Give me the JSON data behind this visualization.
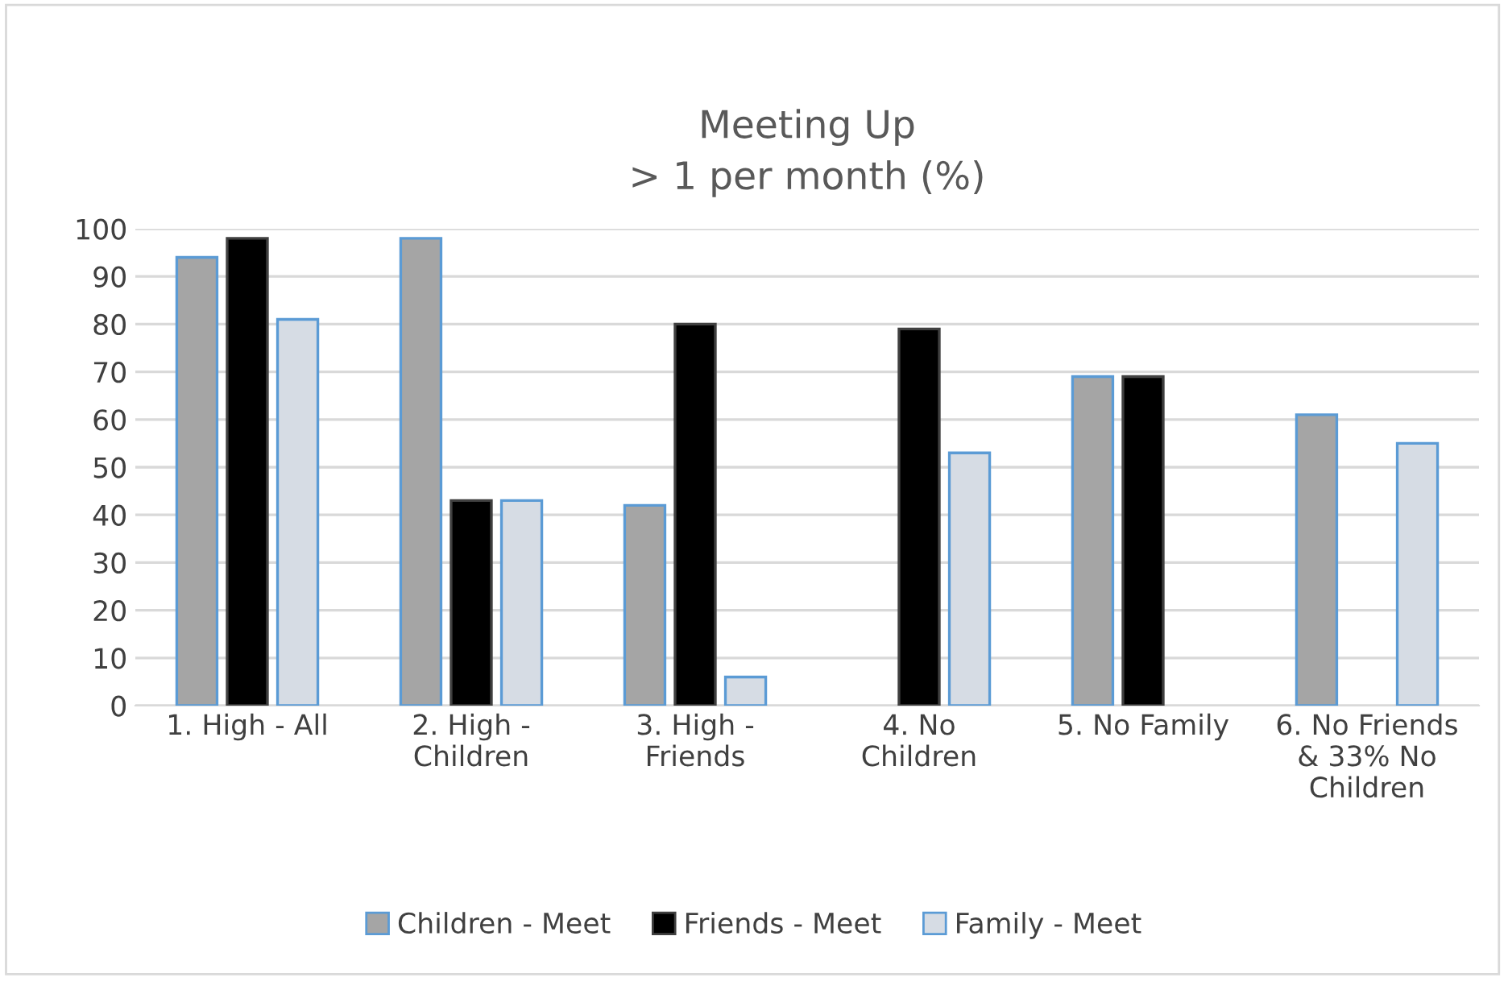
{
  "chart_data": {
    "type": "bar",
    "title": "Meeting Up\n> 1 per month (%)",
    "categories": [
      "1. High - All",
      "2. High - Children",
      "3. High - Friends",
      "4. No Children",
      "5. No Family",
      "6. No Friends & 33% No Children"
    ],
    "series": [
      {
        "name": "Children - Meet",
        "color": "#a5a5a5",
        "values": [
          94,
          98,
          42,
          null,
          69,
          61
        ]
      },
      {
        "name": "Friends - Meet",
        "color": "#000000",
        "values": [
          98,
          43,
          80,
          79,
          69,
          null
        ]
      },
      {
        "name": "Family - Meet",
        "color": "#d6dce4",
        "values": [
          81,
          43,
          6,
          53,
          null,
          55
        ]
      }
    ],
    "ylim": [
      0,
      100
    ],
    "yticks": [
      0,
      10,
      20,
      30,
      40,
      50,
      60,
      70,
      80,
      90,
      100
    ],
    "grid": "y",
    "legend": "bottom"
  }
}
